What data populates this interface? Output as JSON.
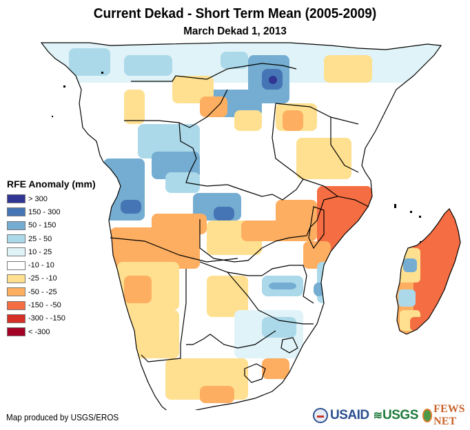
{
  "header": {
    "title": "Current Dekad - Short Term Mean (2005-2009)",
    "subtitle": "March Dekad 1, 2013"
  },
  "legend": {
    "title": "RFE Anomaly (mm)",
    "items": [
      {
        "label": "> 300",
        "color": "#313695"
      },
      {
        "label": "150 - 300",
        "color": "#4575b4"
      },
      {
        "label": "50 - 150",
        "color": "#74add1"
      },
      {
        "label": "25 - 50",
        "color": "#abd9e9"
      },
      {
        "label": "10 - 25",
        "color": "#e0f3f8"
      },
      {
        "label": "-10 - 10",
        "color": "#ffffff"
      },
      {
        "label": "-25 - -10",
        "color": "#fee090"
      },
      {
        "label": "-50 - -25",
        "color": "#fdae61"
      },
      {
        "label": "-150 - -50",
        "color": "#f46d43"
      },
      {
        "label": "-300 - -150",
        "color": "#d73027"
      },
      {
        "label": "< -300",
        "color": "#a50026"
      }
    ]
  },
  "footer": {
    "credit": "Map produced by USGS/EROS",
    "logos": {
      "usaid": "USAID",
      "usgs": "USGS",
      "fewsnet": "FEWS NET"
    }
  },
  "map": {
    "region": "Southern and Central Africa with Madagascar",
    "dominant_patterns": [
      {
        "area": "Angola / western Congo",
        "class": "50 - 150"
      },
      {
        "area": "Northern DRC",
        "class": "150 - 300"
      },
      {
        "area": "Mozambique",
        "class": "-150 - -50"
      },
      {
        "area": "Eastern Madagascar",
        "class": "-150 - -50"
      },
      {
        "area": "Zambia / southern Angola",
        "class": "-50 - -25"
      },
      {
        "area": "South Africa interior",
        "class": "-25 - -10"
      }
    ]
  }
}
